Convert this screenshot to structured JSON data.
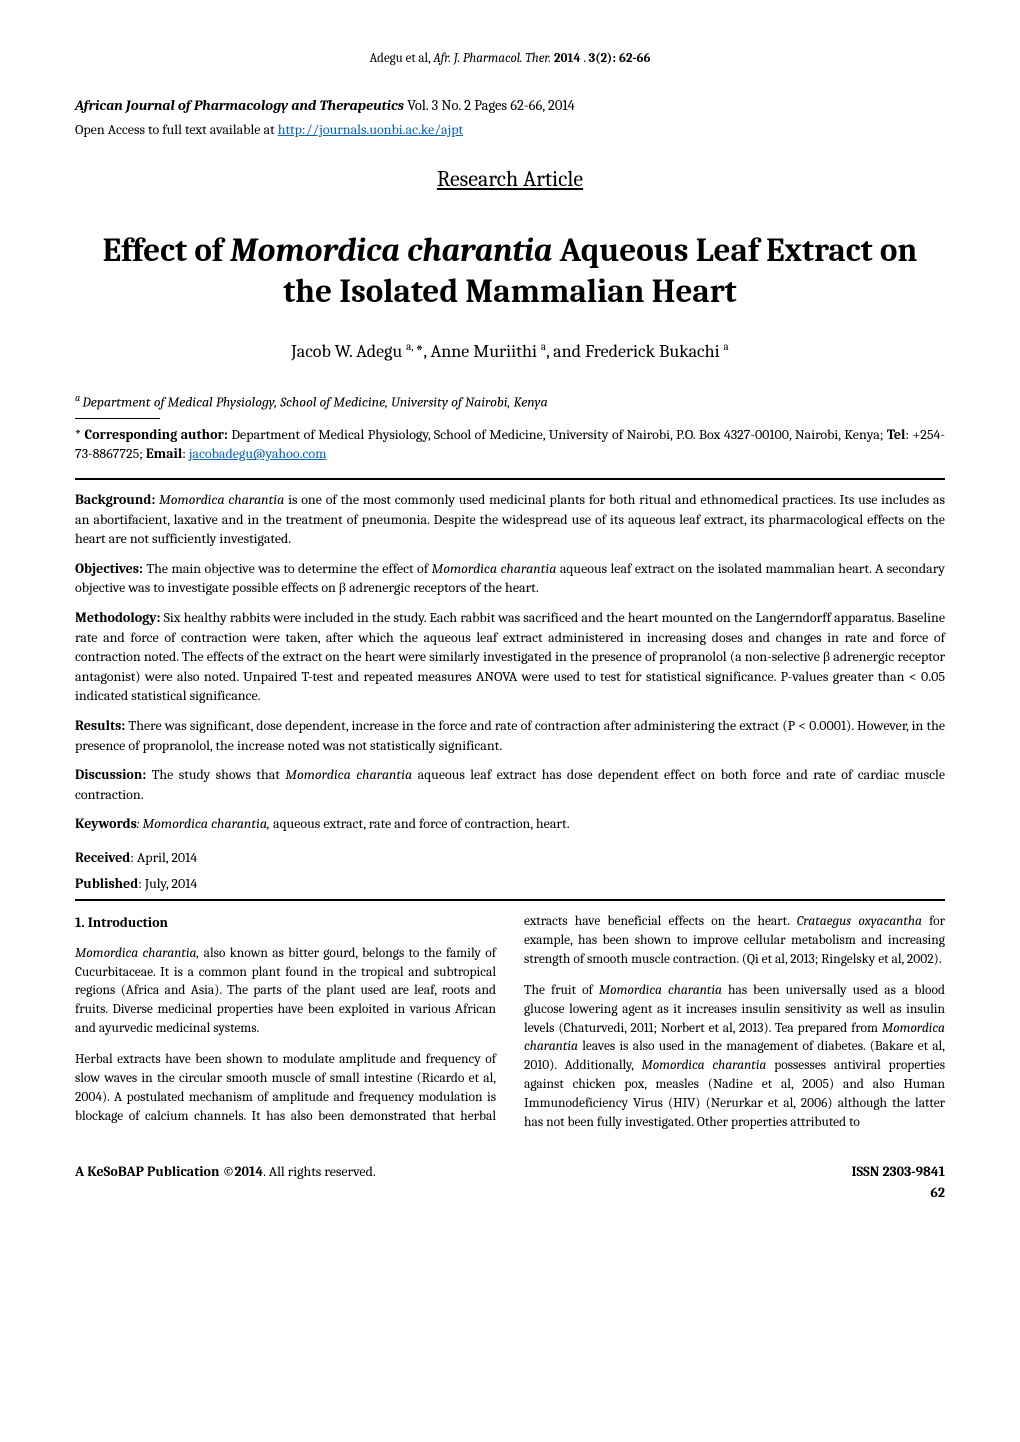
{
  "running_head": {
    "authors": "Adegu et al,",
    "journal_abbrev": "Afr. J. Pharmacol. Ther.",
    "year": "2014",
    "volume_issue": "3(2): 62-66"
  },
  "journal_line": {
    "journal_name": "African Journal of Pharmacology and Therapeutics",
    "vol_text": " Vol. 3 No. 2 Pages 62-66, 2014"
  },
  "open_access": {
    "prefix": "Open Access to full text available at  ",
    "url_text": "http://journals.uonbi.ac.ke/ajpt",
    "url_href": "http://journals.uonbi.ac.ke/ajpt"
  },
  "article_type": "Research Article",
  "title": {
    "pre": "Effect of ",
    "species": "Momordica charantia",
    "post": " Aqueous Leaf Extract on the Isolated Mammalian Heart"
  },
  "authors": {
    "a1_name": "Jacob W. Adegu ",
    "a1_sup": "a, ",
    "a1_star": "*, ",
    "a2_name": "Anne Muriithi ",
    "a2_sup": "a",
    "sep": ", and ",
    "a3_name": "Frederick Bukachi ",
    "a3_sup": "a"
  },
  "affiliation": {
    "sup": "a ",
    "text": "Department of Medical Physiology, School of Medicine, University of Nairobi, Kenya"
  },
  "corresponding": {
    "star": "* ",
    "label": "Corresponding author:",
    "text1": " Department of Medical Physiology, School of Medicine, University of Nairobi, P.O. Box 4327-00100, Nairobi, Kenya; ",
    "tel_label": "Tel",
    "tel": ": +254-73-8867725; ",
    "email_label": "Email",
    "email_sep": ": ",
    "email_text": "jacobadegu@yahoo.com",
    "email_href": "mailto:jacobadegu@yahoo.com"
  },
  "abstract": {
    "background": {
      "heading": "Background:",
      "pre": " ",
      "species": "Momordica charantia",
      "post": " is one of the most commonly used medicinal plants for both ritual and ethnomedical practices. Its use includes as an abortifacient, laxative and in the treatment of pneumonia. Despite the widespread use of its aqueous leaf extract, its pharmacological effects on the heart are not sufficiently investigated."
    },
    "objectives": {
      "heading": "Objectives:",
      "pre": " The main objective was to determine the effect of ",
      "species": "Momordica charantia",
      "post": " aqueous leaf extract on the isolated mammalian heart. A secondary objective was to investigate possible effects on β adrenergic receptors of the heart."
    },
    "methodology": {
      "heading": "Methodology:",
      "text": " Six healthy rabbits were included in the study. Each rabbit was sacrificed and the heart mounted on the Langerndorff apparatus. Baseline rate and force of contraction were taken, after which the aqueous leaf extract administered in increasing doses and changes in rate and force of contraction noted. The effects of the extract on the heart were similarly investigated in the presence of propranolol (a non-selective β adrenergic receptor antagonist) were also noted.  Unpaired T-test and repeated measures ANOVA were used to test for statistical significance. P-values greater than < 0.05 indicated statistical significance."
    },
    "results": {
      "heading": "Results:",
      "text": " There was significant, dose dependent, increase in the force and rate of contraction after administering the extract (P < 0.0001). However, in the presence of propranolol, the increase noted was not statistically significant."
    },
    "discussion": {
      "heading": "Discussion:",
      "pre": " The study shows that ",
      "species": "Momordica charantia",
      "post": " aqueous leaf extract has dose dependent effect on both force and rate of cardiac muscle contraction."
    }
  },
  "keywords": {
    "heading": "Keywords",
    "colon": ": ",
    "species": "Momordica charantia,",
    "rest": " aqueous extract, rate and force of contraction, heart."
  },
  "dates": {
    "received_label": "Received",
    "received": ": April, 2014",
    "published_label": "Published",
    "published": ": July, 2014"
  },
  "body": {
    "intro_heading": "1. Introduction",
    "p1": {
      "species": "Momordica charantia,",
      "text": " also known as bitter gourd, belongs to the family of Cucurbitaceae. It is a common plant found in the tropical and subtropical regions (Africa and Asia). The parts of the plant used are leaf, roots and fruits. Diverse medicinal properties have been exploited in various African and ayurvedic medicinal systems."
    },
    "p2": {
      "pre": "Herbal extracts have been shown to modulate amplitude and frequency of slow waves in the circular smooth muscle of small intestine (Ricardo et al, 2004). A postulated mechanism of amplitude and frequency modulation is blockage of calcium channels. It has also been demonstrated that herbal extracts have beneficial effects on the heart. ",
      "species": "Crataegus oxyacantha",
      "post": " for example, has been shown to improve cellular metabolism and increasing strength of smooth muscle contraction. (Qi et al, 2013; Ringelsky et al, 2002)."
    },
    "p3": {
      "pre": "The fruit of ",
      "species1": "Momordica charantia",
      "mid1": " has been universally used as a blood glucose lowering agent as it increases insulin sensitivity as well as insulin levels (Chaturvedi, 2011; Norbert et al, 2013). Tea prepared from ",
      "species2": "Momordica charantia",
      "mid2": " leaves is also used in the management of diabetes. (Bakare et al, 2010). Additionally, ",
      "species3": "Momordica charantia",
      "post": " possesses antiviral properties against chicken pox, measles (Nadine et al, 2005) and also Human Immunodeficiency Virus (HIV) (Nerurkar et al, 2006) although the latter has not been fully investigated. Other properties attributed to"
    }
  },
  "footer": {
    "pub": "A KeSoBAP Publication ©2014",
    "rights": ". All rights reserved.",
    "issn": "ISSN 2303-9841",
    "page": "62"
  }
}
